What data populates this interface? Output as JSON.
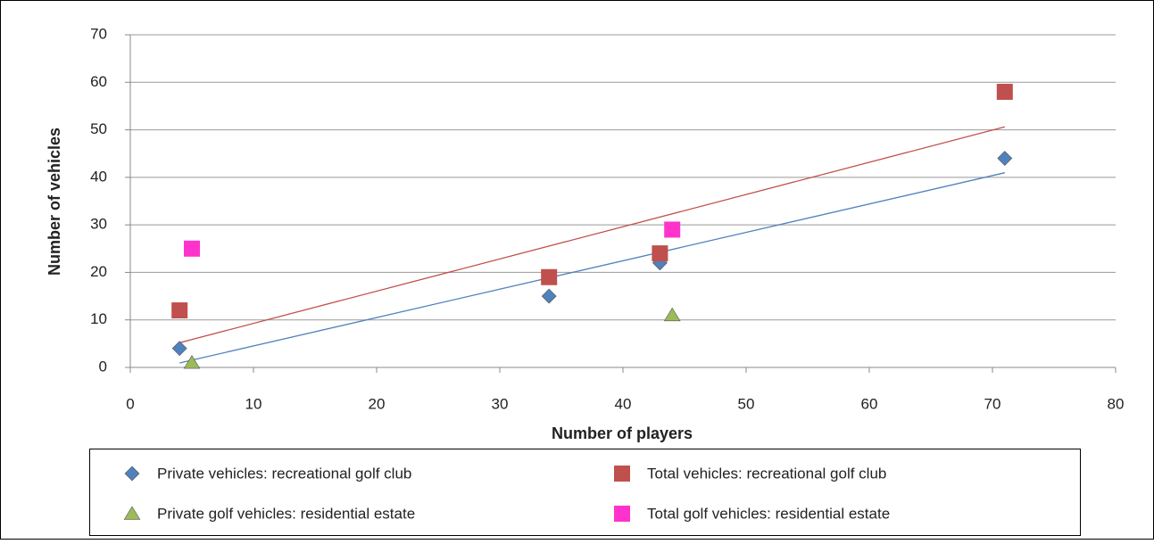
{
  "chart_data": {
    "type": "scatter",
    "x_label": "Number of players",
    "y_label": "Number of vehicles",
    "xlim": [
      0,
      80
    ],
    "xticks": [
      0,
      10,
      20,
      30,
      40,
      50,
      60,
      70,
      80
    ],
    "ylim": [
      0,
      70
    ],
    "yticks": [
      0,
      10,
      20,
      30,
      40,
      50,
      60,
      70
    ],
    "grid": true,
    "legend": "bottom",
    "series": [
      {
        "name": "Private vehicles: recreational golf club",
        "color": "#4f81bd",
        "marker": "diamond",
        "trendline": true,
        "x": [
          4,
          34,
          43,
          71
        ],
        "values": [
          4,
          15,
          22,
          44
        ]
      },
      {
        "name": "Total vehicles: recreational golf club",
        "color": "#c0504d",
        "marker": "square",
        "trendline": true,
        "x": [
          4,
          34,
          43,
          71
        ],
        "values": [
          12,
          19,
          24,
          58
        ]
      },
      {
        "name": "Private golf vehicles: residential estate",
        "color": "#9bbb59",
        "marker": "triangle",
        "trendline": false,
        "x": [
          5,
          44
        ],
        "values": [
          1,
          11
        ]
      },
      {
        "name": "Total golf vehicles: residential estate",
        "color": "#ff33cc",
        "marker": "square",
        "trendline": false,
        "x": [
          5,
          44
        ],
        "values": [
          25,
          29
        ]
      }
    ]
  }
}
